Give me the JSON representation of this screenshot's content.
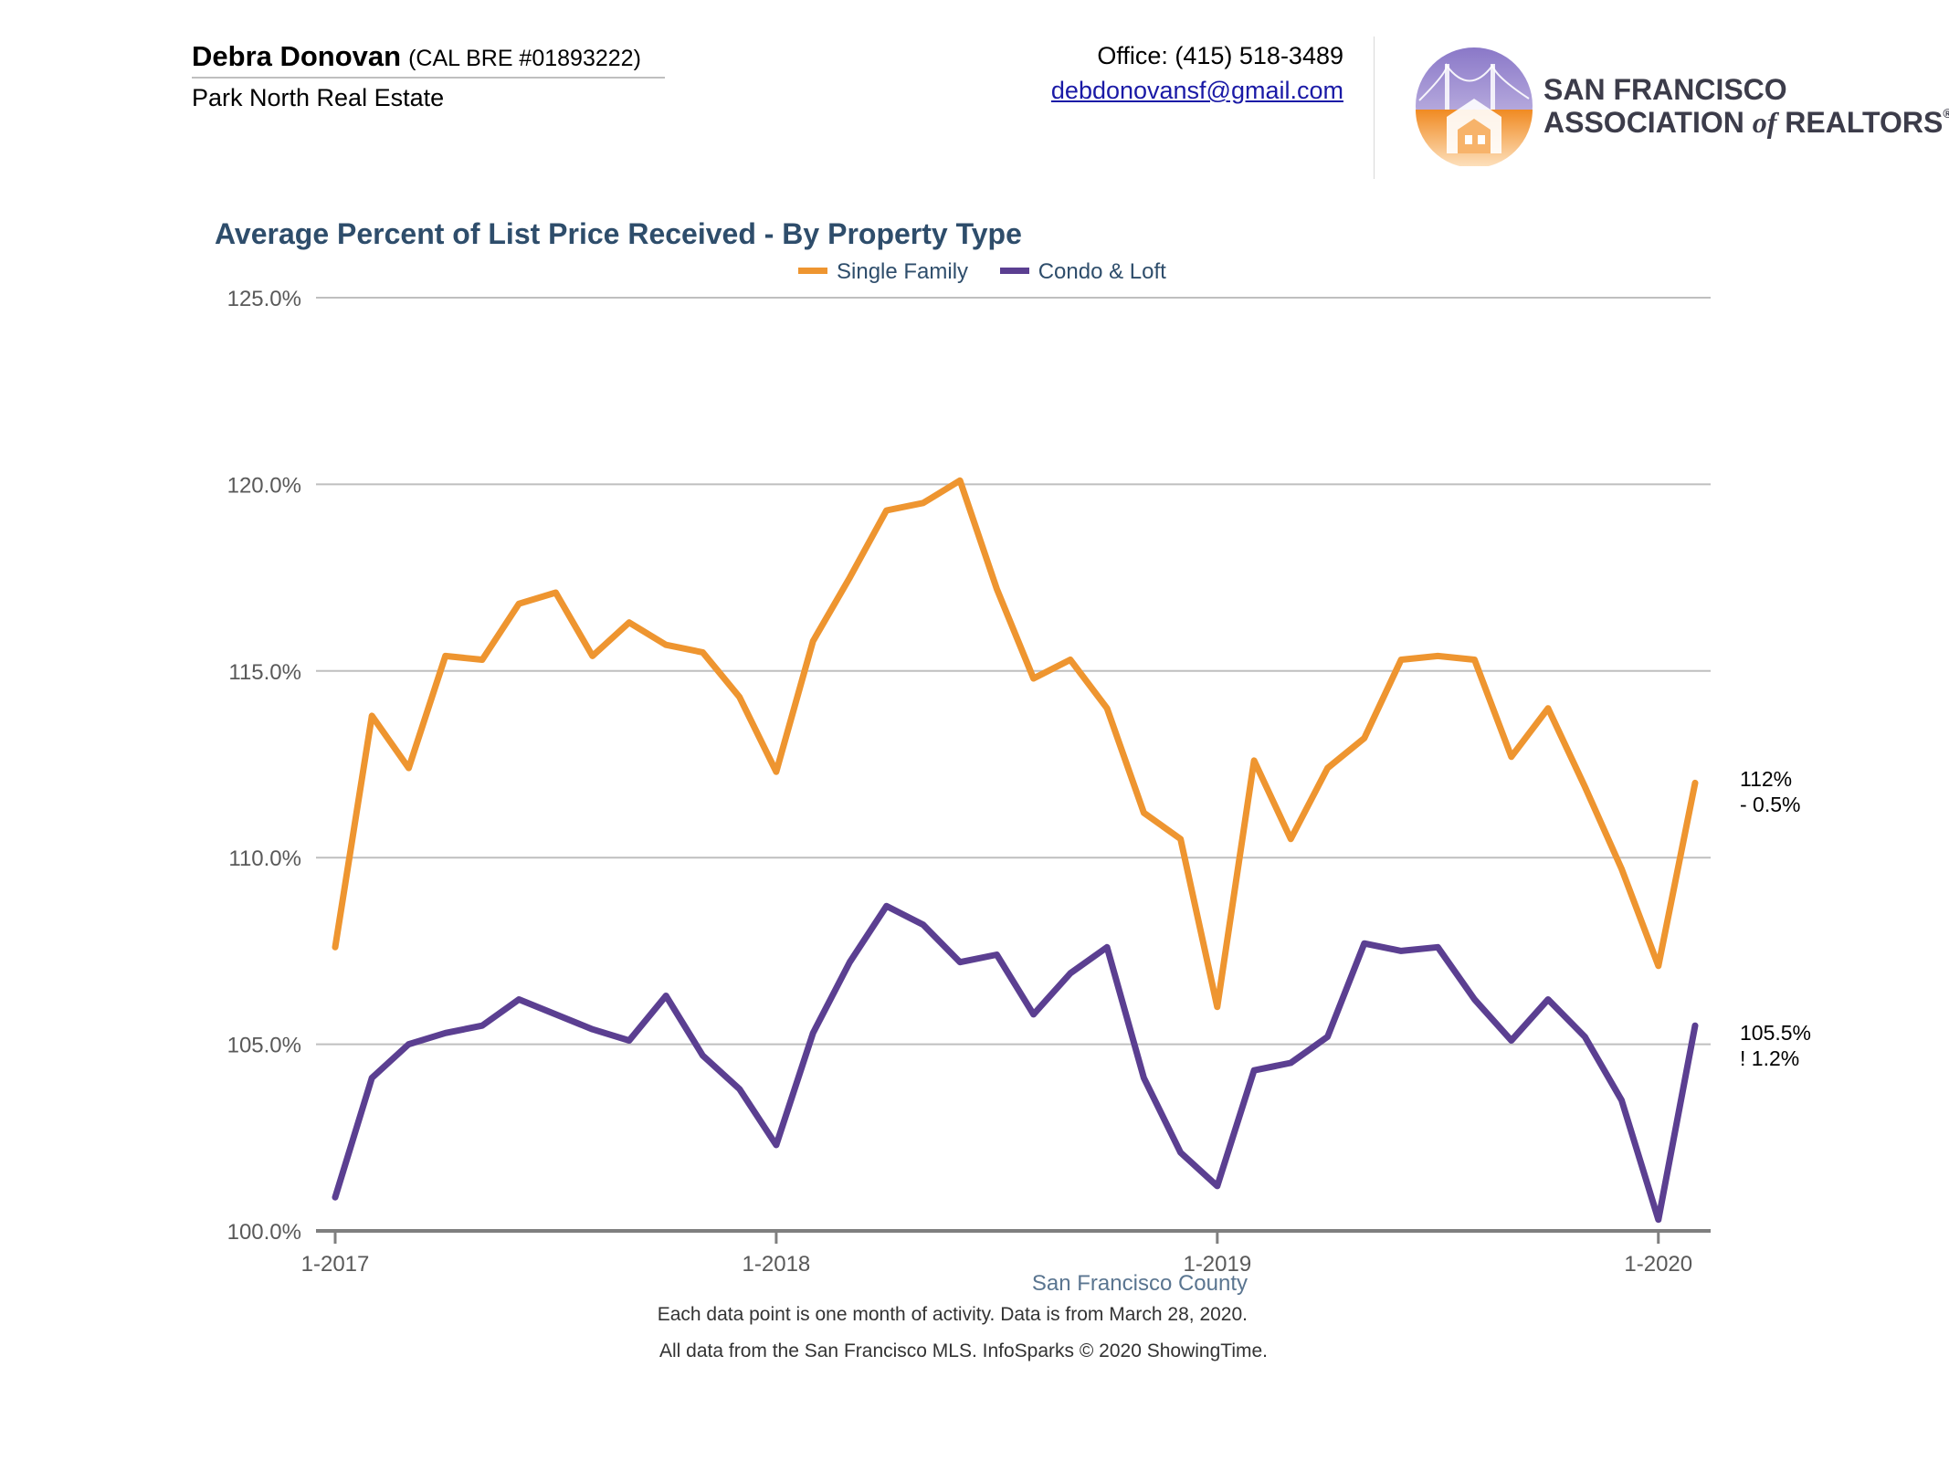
{
  "header": {
    "agent_name": "Debra Donovan",
    "agent_license": "(CAL BRE #01893222)",
    "company": "Park North Real Estate",
    "office_phone": "Office: (415) 518-3489",
    "email": "debdonovansf@gmail.com",
    "association_line1": "SAN FRANCISCO",
    "association_line2_a": "ASSOCIATION ",
    "association_line2_of": "of",
    "association_line2_b": " REALTORS",
    "association_reg": "®"
  },
  "colors": {
    "single_family": "#ee9530",
    "condo_loft": "#5b3f91",
    "title": "#2e4d6b",
    "grid": "#bfbfbf",
    "axis": "#7f7f7f"
  },
  "chart_data": {
    "type": "line",
    "title": "Average Percent of List Price Received - By Property Type",
    "xlabel": "",
    "ylabel": "",
    "ylim": [
      100,
      125
    ],
    "yticks": [
      "100.0%",
      "105.0%",
      "110.0%",
      "115.0%",
      "120.0%",
      "125.0%"
    ],
    "ytick_values": [
      100,
      105,
      110,
      115,
      120,
      125
    ],
    "xticks": [
      {
        "label": "1-2017",
        "index": 0
      },
      {
        "label": "1-2018",
        "index": 12
      },
      {
        "label": "1-2019",
        "index": 24
      },
      {
        "label": "1-2020",
        "index": 36
      }
    ],
    "x": [
      "2017-01",
      "2017-02",
      "2017-03",
      "2017-04",
      "2017-05",
      "2017-06",
      "2017-07",
      "2017-08",
      "2017-09",
      "2017-10",
      "2017-11",
      "2017-12",
      "2018-01",
      "2018-02",
      "2018-03",
      "2018-04",
      "2018-05",
      "2018-06",
      "2018-07",
      "2018-08",
      "2018-09",
      "2018-10",
      "2018-11",
      "2018-12",
      "2019-01",
      "2019-02",
      "2019-03",
      "2019-04",
      "2019-05",
      "2019-06",
      "2019-07",
      "2019-08",
      "2019-09",
      "2019-10",
      "2019-11",
      "2019-12",
      "2020-01",
      "2020-02"
    ],
    "legend_position": "top-center",
    "grid": true,
    "series": [
      {
        "name": "Single Family",
        "color": "#ee9530",
        "end_label_value": "112%",
        "end_label_change": "- 0.5%",
        "values": [
          107.6,
          113.8,
          112.4,
          115.4,
          115.3,
          116.8,
          117.1,
          115.4,
          116.3,
          115.7,
          115.5,
          114.3,
          112.3,
          115.8,
          117.5,
          119.3,
          119.5,
          120.1,
          117.2,
          114.8,
          115.3,
          114.0,
          111.2,
          110.5,
          106.0,
          112.6,
          110.5,
          112.4,
          113.2,
          115.3,
          115.4,
          115.3,
          112.7,
          114.0,
          111.9,
          109.7,
          107.1,
          112.0
        ]
      },
      {
        "name": "Condo & Loft",
        "color": "#5b3f91",
        "end_label_value": "105.5%",
        "end_label_change": "! 1.2%",
        "values": [
          100.9,
          104.1,
          105.0,
          105.3,
          105.5,
          106.2,
          105.8,
          105.4,
          105.1,
          106.3,
          104.7,
          103.8,
          102.3,
          105.3,
          107.2,
          108.7,
          108.2,
          107.2,
          107.4,
          105.8,
          106.9,
          107.6,
          104.1,
          102.1,
          101.2,
          104.3,
          104.5,
          105.2,
          107.7,
          107.5,
          107.6,
          106.2,
          105.1,
          106.2,
          105.2,
          103.5,
          100.3,
          105.5
        ]
      }
    ]
  },
  "footer": {
    "region": "San Francisco County",
    "note1": "Each data point is one month of activity. Data is from March 28, 2020.",
    "note2": "All data from the San Francisco MLS. InfoSparks © 2020 ShowingTime."
  }
}
